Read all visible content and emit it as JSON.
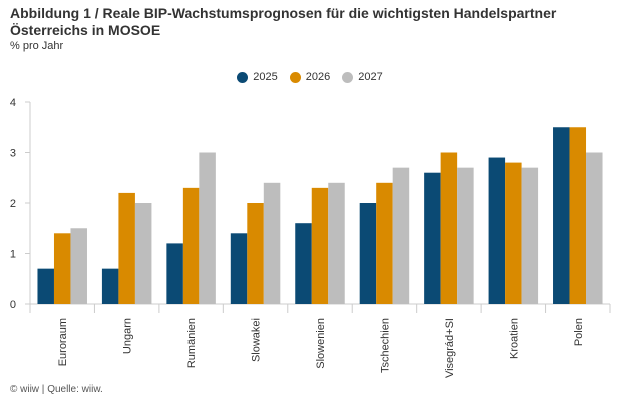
{
  "title": "Abbildung 1 / Reale BIP-Wachstumsprognosen für die wichtigsten Handelspartner Österreichs in MOSOE",
  "subtitle": "% pro Jahr",
  "footer": "© wiiw | Quelle: wiiw.",
  "colors": {
    "s2025": "#0b4a74",
    "s2026": "#d98a00",
    "s2027": "#bdbdbd"
  },
  "chart_data": {
    "type": "bar",
    "categories": [
      "Euroraum",
      "Ungarn",
      "Rumänien",
      "Slowakei",
      "Slowenien",
      "Tschechien",
      "Visegrád+SI",
      "Kroatien",
      "Polen"
    ],
    "series": [
      {
        "name": "2025",
        "values": [
          0.7,
          0.7,
          1.2,
          1.4,
          1.6,
          2.0,
          2.6,
          2.9,
          3.5
        ]
      },
      {
        "name": "2026",
        "values": [
          1.4,
          2.2,
          2.3,
          2.0,
          2.3,
          2.4,
          3.0,
          2.8,
          3.5
        ]
      },
      {
        "name": "2027",
        "values": [
          1.5,
          2.0,
          3.0,
          2.4,
          2.4,
          2.7,
          2.7,
          2.7,
          3.0
        ]
      }
    ],
    "yticks": [
      "0",
      "1",
      "2",
      "3",
      "4"
    ],
    "ylim": [
      0,
      4
    ],
    "legend": "top-center",
    "grid": false
  }
}
